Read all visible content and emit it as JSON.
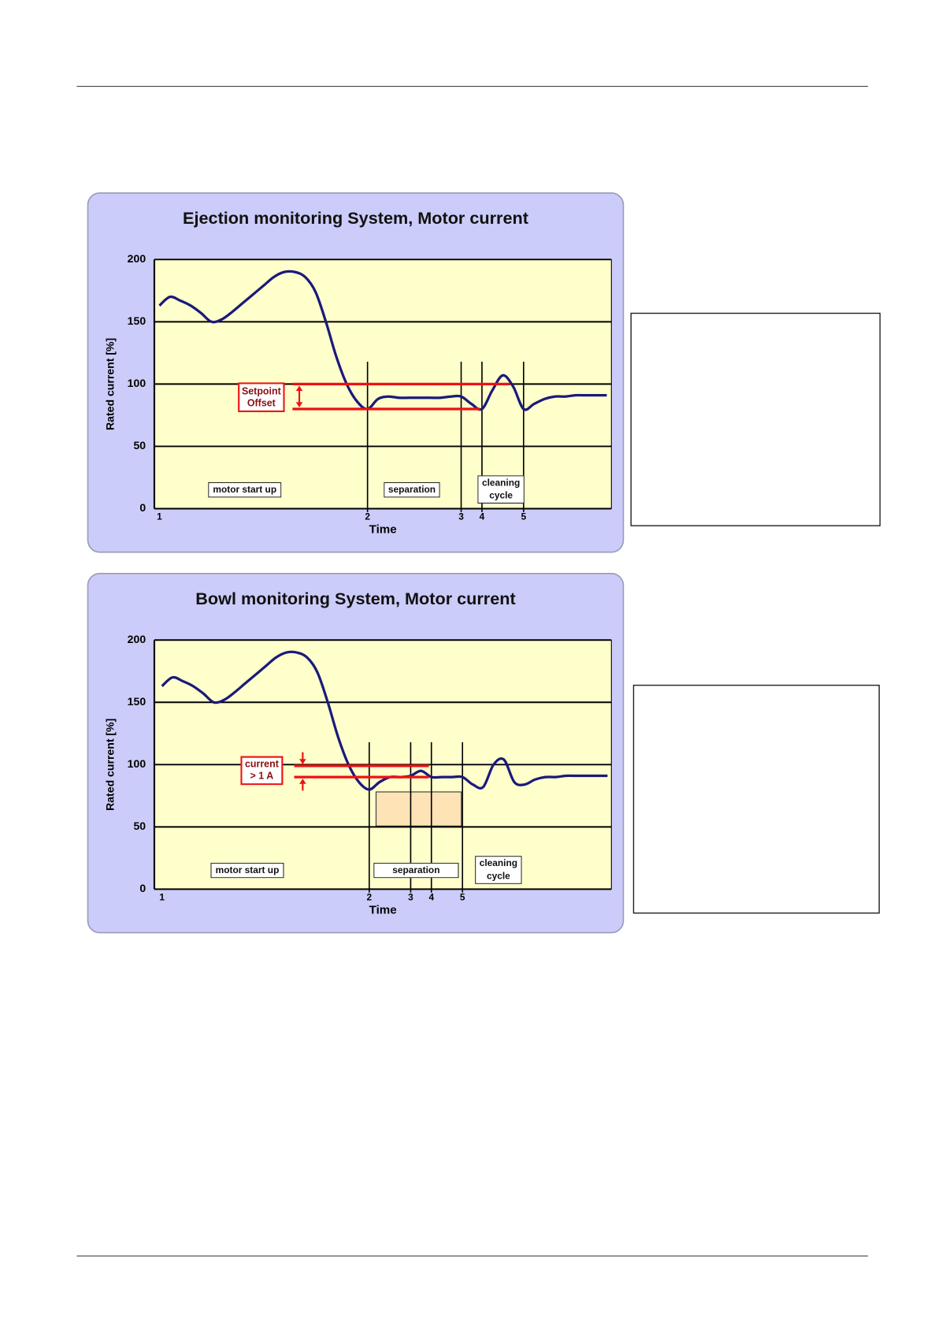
{
  "chart_data": [
    {
      "type": "line",
      "title": "Ejection monitoring System, Motor current",
      "y_label": "Rated current [%]",
      "x_label": "Time",
      "categories": [
        "1",
        null,
        null,
        null,
        null,
        null,
        null,
        null,
        null,
        null,
        null,
        null,
        null,
        null,
        null,
        null,
        null,
        null,
        null,
        null,
        "2",
        null,
        null,
        null,
        null,
        null,
        null,
        null,
        null,
        "3",
        null,
        "4",
        null,
        null,
        null,
        "5",
        null,
        null,
        null,
        null,
        null,
        null,
        null,
        null
      ],
      "series": [
        {
          "color": "#1a1a7a",
          "values": [
            163,
            170,
            167,
            163,
            157,
            150,
            152,
            158,
            165,
            172,
            179,
            186,
            190,
            190,
            186,
            174,
            150,
            122,
            100,
            86,
            80,
            88,
            90,
            89,
            89,
            89,
            89,
            89,
            90,
            90,
            84,
            80,
            95,
            107,
            98,
            80,
            84,
            88,
            90,
            90,
            91,
            91,
            91,
            91
          ]
        }
      ],
      "ylim": [
        0,
        200
      ],
      "yticks": [
        0,
        50,
        100,
        150,
        200
      ],
      "grid": true,
      "reference_lines": [
        100,
        80
      ],
      "reference_color": "#ee1111",
      "annotation": "Setpoint Offset",
      "phases": [
        "motor start up",
        "separation",
        "cleaning cycle"
      ]
    },
    {
      "type": "line",
      "title": "Bowl monitoring System, Motor current",
      "y_label": "Rated current [%]",
      "x_label": "Time",
      "categories": [
        "1",
        null,
        null,
        null,
        null,
        null,
        null,
        null,
        null,
        null,
        null,
        null,
        null,
        null,
        null,
        null,
        null,
        null,
        null,
        null,
        "2",
        null,
        null,
        null,
        "3",
        null,
        "4",
        null,
        null,
        "5",
        null,
        null,
        null,
        null,
        null,
        null,
        null,
        null,
        null,
        null,
        null,
        null,
        null,
        null
      ],
      "series": [
        {
          "color": "#1a1a7a",
          "values": [
            163,
            170,
            167,
            163,
            157,
            150,
            152,
            158,
            165,
            172,
            179,
            186,
            190,
            190,
            186,
            174,
            150,
            122,
            100,
            86,
            80,
            86,
            90,
            90,
            91,
            95,
            90,
            90,
            90,
            90,
            84,
            82,
            100,
            104,
            86,
            84,
            88,
            90,
            90,
            91,
            91,
            91,
            91,
            91
          ]
        }
      ],
      "ylim": [
        0,
        200
      ],
      "yticks": [
        0,
        50,
        100,
        150,
        200
      ],
      "grid": true,
      "reference_lines": [
        99,
        90
      ],
      "reference_color": "#ee1111",
      "annotation": "current > 1 A",
      "phases": [
        "motor start up",
        "separation",
        "cleaning cycle"
      ]
    }
  ]
}
